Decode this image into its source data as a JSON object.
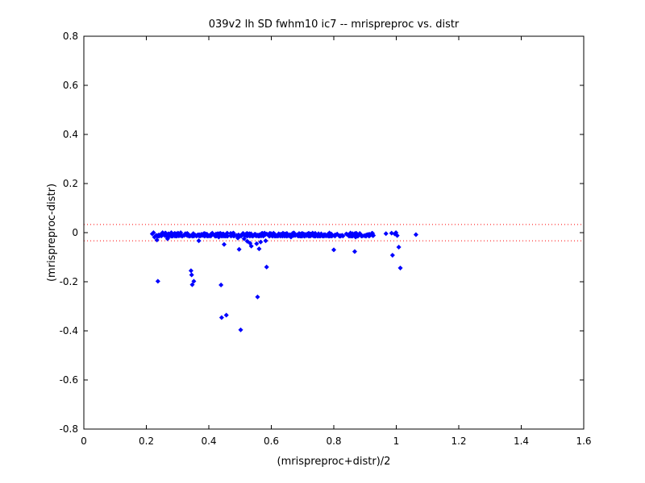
{
  "chart_data": {
    "type": "scatter",
    "title": "039v2 lh SD fwhm10 ic7 -- mrispreproc vs. distr",
    "xlabel": "(mrispreproc+distr)/2",
    "ylabel": "(mrispreproc-distr)",
    "xlim": [
      0,
      1.6
    ],
    "ylim": [
      -0.8,
      0.8
    ],
    "xticks": [
      0,
      0.2,
      0.4,
      0.6,
      0.8,
      1,
      1.2,
      1.4,
      1.6
    ],
    "xtick_labels": [
      "0",
      "0.2",
      "0.4",
      "0.6",
      "0.8",
      "1",
      "1.2",
      "1.4",
      "1.6"
    ],
    "yticks": [
      -0.8,
      -0.6,
      -0.4,
      -0.2,
      0,
      0.2,
      0.4,
      0.6,
      0.8
    ],
    "ytick_labels": [
      "-0.8",
      "-0.6",
      "-0.4",
      "-0.2",
      "0",
      "0.2",
      "0.4",
      "0.6",
      "0.8"
    ],
    "grid": false,
    "marker_color": "#0000ff",
    "reference_lines": {
      "color": "#ff0000",
      "style": "dotted",
      "y": [
        0.033,
        -0.033
      ]
    },
    "dense_band": {
      "x_range": [
        0.23,
        0.93
      ],
      "y_range": [
        -0.012,
        0.006
      ],
      "description": "dense cluster of points near zero"
    },
    "points": [
      {
        "x": 0.219,
        "y": -0.005
      },
      {
        "x": 0.223,
        "y": 0.0
      },
      {
        "x": 0.226,
        "y": -0.018
      },
      {
        "x": 0.234,
        "y": -0.03
      },
      {
        "x": 0.237,
        "y": -0.198
      },
      {
        "x": 0.247,
        "y": -0.01
      },
      {
        "x": 0.252,
        "y": 0.0
      },
      {
        "x": 0.262,
        "y": -0.002
      },
      {
        "x": 0.268,
        "y": -0.025
      },
      {
        "x": 0.272,
        "y": -0.013
      },
      {
        "x": 0.28,
        "y": 0.0
      },
      {
        "x": 0.292,
        "y": -0.004
      },
      {
        "x": 0.31,
        "y": 0.0
      },
      {
        "x": 0.331,
        "y": -0.003
      },
      {
        "x": 0.343,
        "y": -0.155
      },
      {
        "x": 0.345,
        "y": -0.172
      },
      {
        "x": 0.347,
        "y": -0.212
      },
      {
        "x": 0.352,
        "y": -0.198
      },
      {
        "x": 0.368,
        "y": -0.033
      },
      {
        "x": 0.385,
        "y": -0.004
      },
      {
        "x": 0.411,
        "y": -0.002
      },
      {
        "x": 0.432,
        "y": -0.018
      },
      {
        "x": 0.439,
        "y": -0.213
      },
      {
        "x": 0.441,
        "y": -0.346
      },
      {
        "x": 0.449,
        "y": -0.048
      },
      {
        "x": 0.456,
        "y": -0.336
      },
      {
        "x": 0.47,
        "y": -0.003
      },
      {
        "x": 0.493,
        "y": -0.022
      },
      {
        "x": 0.497,
        "y": -0.068
      },
      {
        "x": 0.502,
        "y": -0.396
      },
      {
        "x": 0.513,
        "y": -0.025
      },
      {
        "x": 0.523,
        "y": -0.035
      },
      {
        "x": 0.532,
        "y": -0.043
      },
      {
        "x": 0.536,
        "y": -0.055
      },
      {
        "x": 0.553,
        "y": -0.045
      },
      {
        "x": 0.556,
        "y": -0.262
      },
      {
        "x": 0.561,
        "y": -0.066
      },
      {
        "x": 0.566,
        "y": -0.038
      },
      {
        "x": 0.582,
        "y": -0.033
      },
      {
        "x": 0.585,
        "y": -0.14
      },
      {
        "x": 0.663,
        "y": -0.018
      },
      {
        "x": 0.8,
        "y": -0.07
      },
      {
        "x": 0.86,
        "y": -0.004
      },
      {
        "x": 0.867,
        "y": -0.077
      },
      {
        "x": 0.87,
        "y": -0.018
      },
      {
        "x": 0.924,
        "y": -0.003
      },
      {
        "x": 0.967,
        "y": -0.004
      },
      {
        "x": 0.985,
        "y": -0.002
      },
      {
        "x": 0.988,
        "y": -0.092
      },
      {
        "x": 0.995,
        "y": -0.005
      },
      {
        "x": 0.999,
        "y": 0.0
      },
      {
        "x": 1.003,
        "y": -0.012
      },
      {
        "x": 1.008,
        "y": -0.059
      },
      {
        "x": 1.013,
        "y": -0.144
      },
      {
        "x": 1.063,
        "y": -0.008
      }
    ]
  }
}
